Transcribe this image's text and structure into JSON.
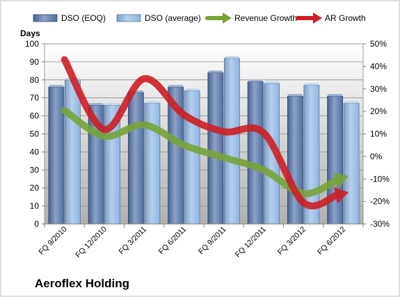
{
  "company": "Aeroflex Holding",
  "chart_data": {
    "type": "bar",
    "categories": [
      "FQ 9/2010",
      "FQ 12/2010",
      "FQ 3/2011",
      "FQ 6/2011",
      "FQ 9/2011",
      "FQ 12/2011",
      "FQ 3/2012",
      "FQ 6/2012"
    ],
    "series": [
      {
        "name": "DSO (EOQ)",
        "type": "bar",
        "axis": "left",
        "color": "#4f6fa5",
        "values": [
          76,
          66,
          73,
          76,
          84,
          79,
          71,
          71
        ]
      },
      {
        "name": "DSO (average)",
        "type": "bar",
        "axis": "left",
        "color": "#8fb4e2",
        "values": [
          80,
          66,
          67,
          74,
          92,
          78,
          77,
          67
        ]
      },
      {
        "name": "Revenue Growth",
        "type": "line",
        "axis": "right",
        "color": "#77a33a",
        "values": [
          0.205,
          0.09,
          0.14,
          0.05,
          -0.005,
          -0.06,
          -0.165,
          -0.095
        ]
      },
      {
        "name": "AR Growth",
        "type": "line",
        "axis": "right",
        "color": "#cc1f26",
        "values": [
          0.43,
          0.12,
          0.345,
          0.185,
          0.11,
          0.105,
          -0.205,
          -0.165
        ]
      }
    ],
    "ylabel": "Days",
    "ylim": [
      0,
      100
    ],
    "yticks": [
      0,
      10,
      20,
      30,
      40,
      50,
      60,
      70,
      80,
      90,
      100
    ],
    "y2lim": [
      -0.3,
      0.5
    ],
    "y2ticks": [
      "-30%",
      "-20%",
      "-10%",
      "0%",
      "10%",
      "20%",
      "30%",
      "40%",
      "50%"
    ],
    "legend_position": "top",
    "grid": true
  }
}
